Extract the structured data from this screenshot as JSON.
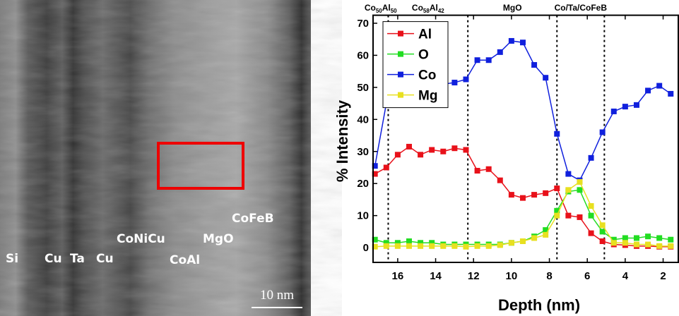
{
  "image": {
    "labels": [
      "Si",
      "Cu",
      "Ta",
      "Cu",
      "CoNiCu",
      "CoAl",
      "MgO",
      "CoFeB"
    ],
    "scale_bar": "10 nm"
  },
  "chart_data": {
    "type": "line",
    "x_label": "Depth (nm)",
    "y_label": "% Intensity",
    "x": [
      17.2,
      16.6,
      16.0,
      15.4,
      14.8,
      14.2,
      13.6,
      13.0,
      12.4,
      11.8,
      11.2,
      10.6,
      10.0,
      9.4,
      8.8,
      8.2,
      7.6,
      7.0,
      6.4,
      5.8,
      5.2,
      4.6,
      4.0,
      3.4,
      2.8,
      2.2,
      1.6
    ],
    "series": [
      {
        "name": "Al",
        "color": "#e8111a",
        "values": [
          23,
          25,
          29,
          31.5,
          29,
          30.5,
          30,
          31,
          30.5,
          24,
          24.5,
          21,
          16.5,
          15.5,
          16.5,
          17,
          18.5,
          10,
          9.5,
          4.5,
          2,
          1,
          0.8,
          0.5,
          0.5,
          0.3,
          0.3
        ]
      },
      {
        "name": "O",
        "color": "#22dd22",
        "values": [
          2.5,
          1.5,
          1.5,
          2,
          1.5,
          1.5,
          1,
          1,
          1,
          1,
          1,
          1,
          1.5,
          2,
          3.5,
          5.5,
          11.5,
          17.5,
          18,
          10,
          5,
          2.5,
          3,
          3,
          3.5,
          3,
          2.5
        ]
      },
      {
        "name": "Co",
        "color": "#1020dd",
        "values": [
          25.5,
          45,
          50,
          51,
          50.5,
          50,
          51,
          51.5,
          52.5,
          58.5,
          58.5,
          61,
          64.5,
          64,
          57,
          53,
          35.5,
          23,
          21,
          28,
          36,
          42.5,
          44,
          44.5,
          49,
          50.5,
          48
        ]
      },
      {
        "name": "Mg",
        "color": "#e8e020",
        "values": [
          0.3,
          0.5,
          0.5,
          0.5,
          0.5,
          0.5,
          0.5,
          0.5,
          0.3,
          0.5,
          0.5,
          0.8,
          1.5,
          2,
          3,
          4,
          10,
          18,
          20.5,
          13,
          7,
          1.5,
          1.5,
          1,
          1,
          0.5,
          0.5
        ]
      }
    ],
    "boundaries": [
      16.5,
      12.3,
      7.6,
      5.1
    ],
    "regions": [
      [
        "Co",
        "50",
        "Al",
        "50"
      ],
      [
        "Co",
        "58",
        "Al",
        "42"
      ],
      [
        "MgO"
      ],
      [
        "Co/Ta/CoFeB"
      ]
    ],
    "xlim": [
      17.3,
      1.2
    ],
    "ylim": [
      -4.6,
      72.5
    ],
    "xticks": [
      16,
      14,
      12,
      10,
      8,
      6,
      4,
      2
    ],
    "yticks": [
      0,
      10,
      20,
      30,
      40,
      50,
      60,
      70
    ],
    "legend": "top-left"
  }
}
